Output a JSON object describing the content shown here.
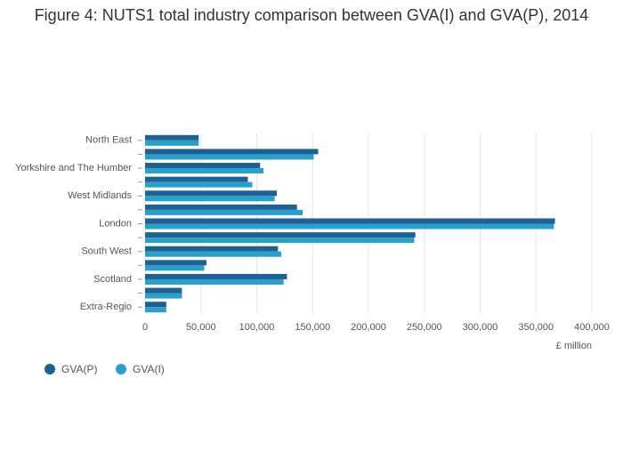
{
  "chart_data": {
    "type": "hbar",
    "title": "Figure 4: NUTS1 total industry comparison between GVA(I) and GVA(P), 2014",
    "x_label": "£ million",
    "categories": [
      "North East",
      null,
      "Yorkshire and The Humber",
      null,
      "West Midlands",
      null,
      "London",
      null,
      "South West",
      null,
      "Scotland",
      null,
      "Extra-Regio"
    ],
    "series": [
      {
        "name": "GVA(P)",
        "color": "#206095",
        "values": [
          48000,
          155000,
          103000,
          92000,
          118000,
          136000,
          367000,
          242000,
          119000,
          55000,
          127000,
          33000,
          19000
        ]
      },
      {
        "name": "GVA(I)",
        "color": "#27a0cc",
        "values": [
          48000,
          151000,
          106000,
          96000,
          116000,
          141000,
          366000,
          241000,
          122000,
          53000,
          124000,
          33000,
          19000
        ]
      }
    ],
    "xlim": [
      0,
      400000
    ],
    "xticks": [
      0,
      {
        "value": 50000,
        "label": "50,000"
      },
      {
        "value": 100000,
        "label": "100,000"
      },
      {
        "value": 150000,
        "label": "150,000"
      },
      {
        "value": 200000,
        "label": "200,000"
      },
      {
        "value": 250000,
        "label": "250,000"
      },
      {
        "value": 300000,
        "label": "300,000"
      },
      {
        "value": 350000,
        "label": "350,000"
      },
      {
        "value": 400000,
        "label": "400,000"
      }
    ],
    "grid": true,
    "legend": "bottom-left"
  }
}
